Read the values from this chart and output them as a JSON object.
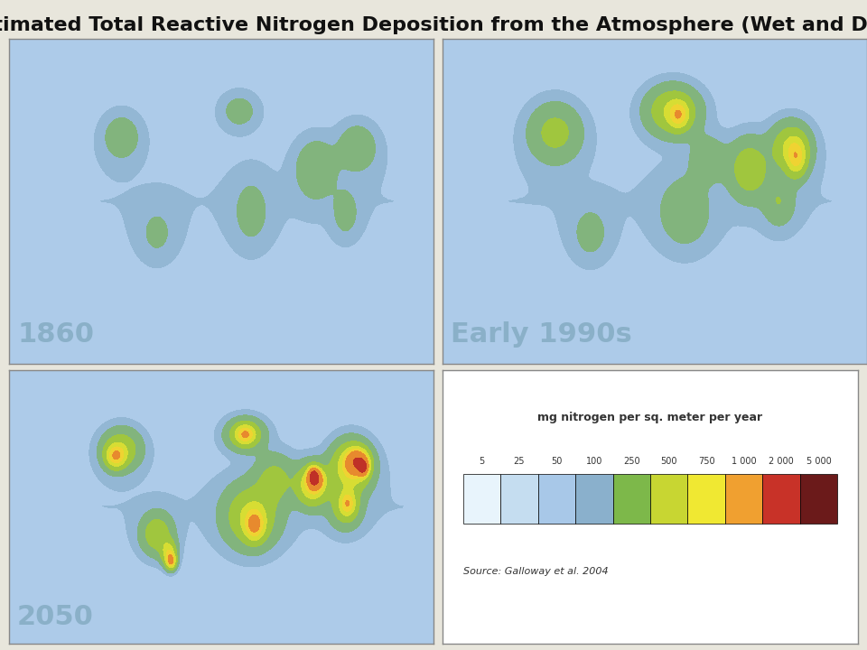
{
  "title": "Estimated Total Reactive Nitrogen Deposition from the Atmosphere (Wet and Dry)",
  "background_color": "#e8e6dc",
  "panel_bg": "#c8ddf0",
  "labels": [
    "1860",
    "Early 1990s",
    "2050"
  ],
  "legend_title": "mg nitrogen per sq. meter per year",
  "legend_values": [
    "5",
    "25",
    "50",
    "100",
    "250",
    "500",
    "750",
    "1 000",
    "2 000",
    "5 000"
  ],
  "legend_colors": [
    "#e8f4fc",
    "#c5ddf0",
    "#a8c8e8",
    "#8ab0cc",
    "#7db84a",
    "#c8d632",
    "#f0e832",
    "#f0a030",
    "#c83228",
    "#6b1a1a"
  ],
  "source_text": "Source: Galloway et al. 2004",
  "title_fontsize": 16,
  "label_color": "#8ab0c8",
  "label_fontsize": 22
}
